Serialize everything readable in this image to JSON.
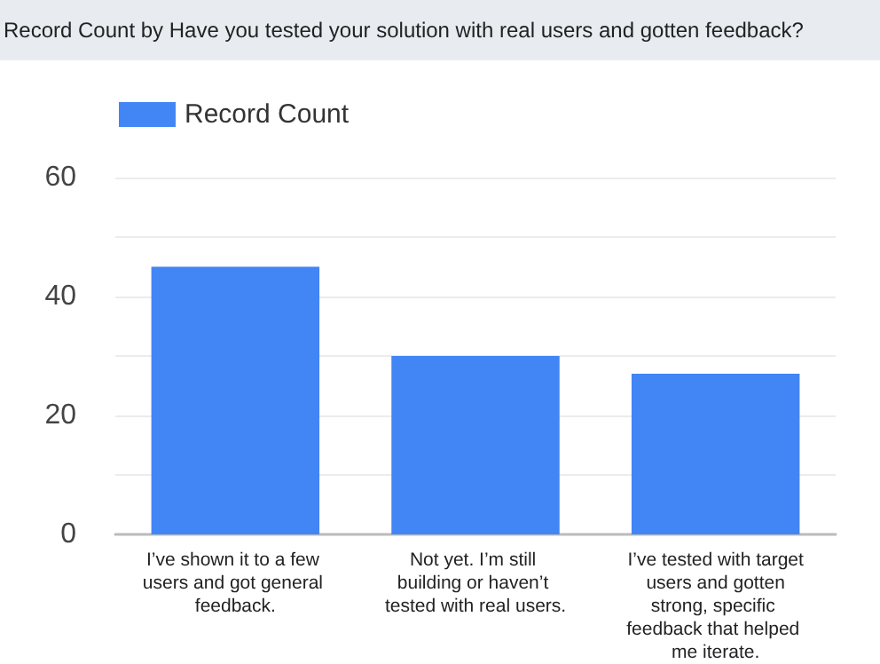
{
  "chart_data": {
    "type": "bar",
    "title": "Record Count by Have you tested your solution with real users and gotten feedback?",
    "categories": [
      "I’ve shown it to a few users and got general feedback.",
      "Not yet. I’m still building or haven’t tested with real users.",
      "I’ve tested with target users and gotten strong, specific feedback that helped me iterate."
    ],
    "series": [
      {
        "name": "Record Count",
        "color": "#4285f4",
        "values": [
          45,
          30,
          27
        ]
      }
    ],
    "ylim": [
      0,
      60
    ],
    "yticks": [
      0,
      {
        "value": 10,
        "label": null
      },
      20,
      {
        "value": 30,
        "label": null
      },
      40,
      {
        "value": 50,
        "label": null
      },
      60
    ],
    "grid": true,
    "legend": "top left"
  }
}
